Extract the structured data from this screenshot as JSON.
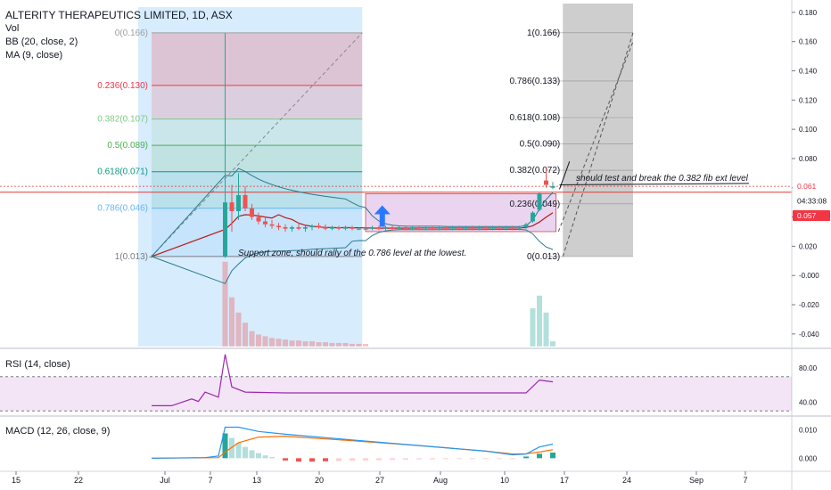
{
  "chart_data": {
    "type": "candlestick",
    "title": "ALTERITY THERAPEUTICS LIMITED, 1D, ASX",
    "indicators": [
      "Vol",
      "BB (20, close, 2)",
      "MA (9, close)"
    ],
    "x_ticks": [
      "15",
      "22",
      "Jul",
      "7",
      "13",
      "20",
      "27",
      "Aug",
      "10",
      "17",
      "24",
      "Sep",
      "7"
    ],
    "price_axis": {
      "ticks": [
        "0.180",
        "0.160",
        "0.140",
        "0.120",
        "0.100",
        "0.080",
        "0.060",
        "0.040",
        "0.020",
        "-0.000",
        "-0.020",
        "-0.040"
      ],
      "ylim": [
        -0.048,
        0.186
      ]
    },
    "price_badges": {
      "last": "0.061",
      "timer": "04:33:08",
      "ma": "0.057"
    },
    "fib_retracement": [
      {
        "label": "0(0.166)",
        "value": 0.166,
        "color": "#9e9e9e"
      },
      {
        "label": "0.236(0.130)",
        "value": 0.13,
        "color": "#f23645"
      },
      {
        "label": "0.382(0.107)",
        "value": 0.107,
        "color": "#81c784"
      },
      {
        "label": "0.5(0.089)",
        "value": 0.089,
        "color": "#4caf50"
      },
      {
        "label": "0.618(0.071)",
        "value": 0.071,
        "color": "#089981"
      },
      {
        "label": "0.786(0.046)",
        "value": 0.046,
        "color": "#64b5f6"
      },
      {
        "label": "1(0.013)",
        "value": 0.013,
        "color": "#787b86"
      }
    ],
    "fib_extension": [
      {
        "label": "1(0.166)",
        "value": 0.166
      },
      {
        "label": "0.786(0.133)",
        "value": 0.133
      },
      {
        "label": "0.618(0.108)",
        "value": 0.108
      },
      {
        "label": "0.5(0.090)",
        "value": 0.09
      },
      {
        "label": "0.382(0.072)",
        "value": 0.072
      },
      {
        "label": "0.236(0.049)",
        "value": 0.049
      },
      {
        "label": "0(0.013)",
        "value": 0.013
      }
    ],
    "annotations": [
      "Support zone, should rally of the 0.786 level at the lowest.",
      "should test and break the 0.382 fib ext level"
    ],
    "candles": [
      {
        "d": 0,
        "o": 0.013,
        "h": 0.014,
        "l": 0.012,
        "c": 0.013
      },
      {
        "d": 11,
        "o": 0.013,
        "h": 0.166,
        "l": 0.012,
        "c": 0.05
      },
      {
        "d": 12,
        "o": 0.05,
        "h": 0.062,
        "l": 0.03,
        "c": 0.044
      },
      {
        "d": 13,
        "o": 0.044,
        "h": 0.07,
        "l": 0.038,
        "c": 0.055
      },
      {
        "d": 14,
        "o": 0.055,
        "h": 0.061,
        "l": 0.044,
        "c": 0.046
      },
      {
        "d": 15,
        "o": 0.046,
        "h": 0.049,
        "l": 0.038,
        "c": 0.04
      },
      {
        "d": 16,
        "o": 0.04,
        "h": 0.043,
        "l": 0.035,
        "c": 0.037
      },
      {
        "d": 17,
        "o": 0.037,
        "h": 0.04,
        "l": 0.033,
        "c": 0.035
      },
      {
        "d": 18,
        "o": 0.035,
        "h": 0.038,
        "l": 0.032,
        "c": 0.034
      },
      {
        "d": 19,
        "o": 0.034,
        "h": 0.036,
        "l": 0.031,
        "c": 0.033
      },
      {
        "d": 20,
        "o": 0.033,
        "h": 0.035,
        "l": 0.03,
        "c": 0.032
      },
      {
        "d": 21,
        "o": 0.032,
        "h": 0.034,
        "l": 0.03,
        "c": 0.033
      },
      {
        "d": 22,
        "o": 0.033,
        "h": 0.036,
        "l": 0.031,
        "c": 0.032
      },
      {
        "d": 23,
        "o": 0.032,
        "h": 0.034,
        "l": 0.03,
        "c": 0.033
      },
      {
        "d": 24,
        "o": 0.033,
        "h": 0.035,
        "l": 0.031,
        "c": 0.034
      },
      {
        "d": 25,
        "o": 0.034,
        "h": 0.036,
        "l": 0.032,
        "c": 0.033
      },
      {
        "d": 26,
        "o": 0.033,
        "h": 0.035,
        "l": 0.031,
        "c": 0.032
      },
      {
        "d": 27,
        "o": 0.032,
        "h": 0.034,
        "l": 0.031,
        "c": 0.033
      },
      {
        "d": 28,
        "o": 0.033,
        "h": 0.034,
        "l": 0.031,
        "c": 0.032
      },
      {
        "d": 29,
        "o": 0.032,
        "h": 0.034,
        "l": 0.031,
        "c": 0.033
      },
      {
        "d": 30,
        "o": 0.033,
        "h": 0.034,
        "l": 0.031,
        "c": 0.032
      },
      {
        "d": 31,
        "o": 0.032,
        "h": 0.033,
        "l": 0.031,
        "c": 0.032
      },
      {
        "d": 32,
        "o": 0.032,
        "h": 0.033,
        "l": 0.031,
        "c": 0.032
      },
      {
        "d": 33,
        "o": 0.032,
        "h": 0.034,
        "l": 0.031,
        "c": 0.033
      },
      {
        "d": 34,
        "o": 0.033,
        "h": 0.034,
        "l": 0.031,
        "c": 0.032
      },
      {
        "d": 35,
        "o": 0.032,
        "h": 0.034,
        "l": 0.031,
        "c": 0.033
      },
      {
        "d": 36,
        "o": 0.033,
        "h": 0.034,
        "l": 0.031,
        "c": 0.032
      },
      {
        "d": 37,
        "o": 0.032,
        "h": 0.034,
        "l": 0.031,
        "c": 0.033
      },
      {
        "d": 38,
        "o": 0.033,
        "h": 0.034,
        "l": 0.031,
        "c": 0.032
      },
      {
        "d": 39,
        "o": 0.032,
        "h": 0.034,
        "l": 0.031,
        "c": 0.033
      },
      {
        "d": 40,
        "o": 0.033,
        "h": 0.034,
        "l": 0.031,
        "c": 0.032
      },
      {
        "d": 41,
        "o": 0.032,
        "h": 0.034,
        "l": 0.031,
        "c": 0.033
      },
      {
        "d": 42,
        "o": 0.033,
        "h": 0.034,
        "l": 0.031,
        "c": 0.032
      },
      {
        "d": 43,
        "o": 0.032,
        "h": 0.034,
        "l": 0.031,
        "c": 0.033
      },
      {
        "d": 44,
        "o": 0.033,
        "h": 0.034,
        "l": 0.031,
        "c": 0.032
      },
      {
        "d": 45,
        "o": 0.032,
        "h": 0.034,
        "l": 0.031,
        "c": 0.033
      },
      {
        "d": 46,
        "o": 0.033,
        "h": 0.034,
        "l": 0.031,
        "c": 0.032
      },
      {
        "d": 47,
        "o": 0.032,
        "h": 0.034,
        "l": 0.031,
        "c": 0.033
      },
      {
        "d": 48,
        "o": 0.033,
        "h": 0.034,
        "l": 0.031,
        "c": 0.032
      },
      {
        "d": 49,
        "o": 0.032,
        "h": 0.034,
        "l": 0.031,
        "c": 0.033
      },
      {
        "d": 50,
        "o": 0.033,
        "h": 0.034,
        "l": 0.031,
        "c": 0.032
      },
      {
        "d": 51,
        "o": 0.032,
        "h": 0.034,
        "l": 0.031,
        "c": 0.033
      },
      {
        "d": 52,
        "o": 0.033,
        "h": 0.034,
        "l": 0.031,
        "c": 0.032
      },
      {
        "d": 53,
        "o": 0.032,
        "h": 0.034,
        "l": 0.031,
        "c": 0.033
      },
      {
        "d": 54,
        "o": 0.033,
        "h": 0.034,
        "l": 0.031,
        "c": 0.032
      },
      {
        "d": 55,
        "o": 0.032,
        "h": 0.034,
        "l": 0.031,
        "c": 0.033
      },
      {
        "d": 56,
        "o": 0.033,
        "h": 0.036,
        "l": 0.032,
        "c": 0.035
      },
      {
        "d": 57,
        "o": 0.037,
        "h": 0.044,
        "l": 0.036,
        "c": 0.043
      },
      {
        "d": 58,
        "o": 0.045,
        "h": 0.057,
        "l": 0.044,
        "c": 0.056
      },
      {
        "d": 59,
        "o": 0.065,
        "h": 0.073,
        "l": 0.06,
        "c": 0.062
      },
      {
        "d": 60,
        "o": 0.06,
        "h": 0.064,
        "l": 0.059,
        "c": 0.061
      }
    ],
    "volume": [
      {
        "d": 11,
        "v": 100
      },
      {
        "d": 12,
        "v": 58
      },
      {
        "d": 13,
        "v": 40
      },
      {
        "d": 14,
        "v": 28
      },
      {
        "d": 15,
        "v": 18
      },
      {
        "d": 16,
        "v": 14
      },
      {
        "d": 17,
        "v": 12
      },
      {
        "d": 18,
        "v": 10
      },
      {
        "d": 19,
        "v": 9
      },
      {
        "d": 20,
        "v": 8
      },
      {
        "d": 21,
        "v": 7
      },
      {
        "d": 22,
        "v": 7
      },
      {
        "d": 23,
        "v": 6
      },
      {
        "d": 24,
        "v": 6
      },
      {
        "d": 25,
        "v": 5
      },
      {
        "d": 26,
        "v": 5
      },
      {
        "d": 27,
        "v": 4
      },
      {
        "d": 28,
        "v": 4
      },
      {
        "d": 29,
        "v": 4
      },
      {
        "d": 30,
        "v": 3
      },
      {
        "d": 31,
        "v": 3
      },
      {
        "d": 32,
        "v": 3
      },
      {
        "d": 57,
        "v": 45
      },
      {
        "d": 58,
        "v": 60
      },
      {
        "d": 59,
        "v": 40
      },
      {
        "d": 60,
        "v": 6
      }
    ],
    "rsi": {
      "label": "RSI (14, close)",
      "ticks": [
        "80.00",
        "40.00"
      ],
      "band": [
        30,
        70
      ],
      "ylim": [
        25,
        100
      ],
      "values": [
        [
          0,
          36
        ],
        [
          3,
          36
        ],
        [
          6,
          44
        ],
        [
          7,
          41
        ],
        [
          8,
          52
        ],
        [
          10,
          46
        ],
        [
          11,
          96
        ],
        [
          12,
          58
        ],
        [
          14,
          52
        ],
        [
          20,
          51
        ],
        [
          30,
          51
        ],
        [
          40,
          51
        ],
        [
          52,
          51
        ],
        [
          56,
          51
        ],
        [
          58,
          66
        ],
        [
          60,
          64
        ]
      ]
    },
    "macd": {
      "label": "MACD (12, 26, close, 9)",
      "ticks": [
        "0.010",
        "0.000"
      ],
      "ylim": [
        -0.004,
        0.014
      ],
      "macd_line": [
        [
          0,
          0
        ],
        [
          8,
          0.0002
        ],
        [
          10,
          0.0008
        ],
        [
          11,
          0.011
        ],
        [
          13,
          0.011
        ],
        [
          16,
          0.0095
        ],
        [
          20,
          0.0085
        ],
        [
          30,
          0.0065
        ],
        [
          40,
          0.0045
        ],
        [
          50,
          0.0025
        ],
        [
          54,
          0.0012
        ],
        [
          56,
          0.0015
        ],
        [
          58,
          0.004
        ],
        [
          60,
          0.005
        ]
      ],
      "signal_line": [
        [
          0,
          0
        ],
        [
          10,
          0.0002
        ],
        [
          11,
          0.0022
        ],
        [
          13,
          0.0055
        ],
        [
          16,
          0.0075
        ],
        [
          20,
          0.0078
        ],
        [
          30,
          0.0062
        ],
        [
          40,
          0.0045
        ],
        [
          50,
          0.0025
        ],
        [
          54,
          0.0015
        ],
        [
          56,
          0.0016
        ],
        [
          58,
          0.0022
        ],
        [
          60,
          0.003
        ]
      ],
      "histogram": [
        {
          "d": 11,
          "v": 0.0088
        },
        {
          "d": 12,
          "v": 0.0072
        },
        {
          "d": 13,
          "v": 0.0055
        },
        {
          "d": 14,
          "v": 0.004
        },
        {
          "d": 15,
          "v": 0.0028
        },
        {
          "d": 16,
          "v": 0.0018
        },
        {
          "d": 17,
          "v": 0.001
        },
        {
          "d": 18,
          "v": 0.0004
        },
        {
          "d": 20,
          "v": -0.0008
        },
        {
          "d": 22,
          "v": -0.0012
        },
        {
          "d": 24,
          "v": -0.0012
        },
        {
          "d": 26,
          "v": -0.0011
        },
        {
          "d": 28,
          "v": -0.001
        },
        {
          "d": 30,
          "v": -0.0009
        },
        {
          "d": 32,
          "v": -0.0008
        },
        {
          "d": 34,
          "v": -0.0007
        },
        {
          "d": 36,
          "v": -0.0006
        },
        {
          "d": 38,
          "v": -0.0005
        },
        {
          "d": 40,
          "v": -0.0004
        },
        {
          "d": 42,
          "v": -0.0004
        },
        {
          "d": 44,
          "v": -0.0003
        },
        {
          "d": 46,
          "v": -0.0003
        },
        {
          "d": 48,
          "v": -0.0002
        },
        {
          "d": 50,
          "v": -0.0002
        },
        {
          "d": 52,
          "v": -0.0002
        },
        {
          "d": 54,
          "v": -0.0003
        },
        {
          "d": 56,
          "v": 0.0006
        },
        {
          "d": 58,
          "v": 0.0016
        },
        {
          "d": 60,
          "v": 0.002
        }
      ]
    },
    "colors": {
      "up": "#26a69a",
      "down": "#ef5350",
      "bb": "#2a7a8c",
      "ma": "#b71c1c",
      "rsi": "#9c27b0",
      "macd": "#2196f3",
      "signal": "#ff6d00",
      "fibline": "#e53935"
    }
  }
}
